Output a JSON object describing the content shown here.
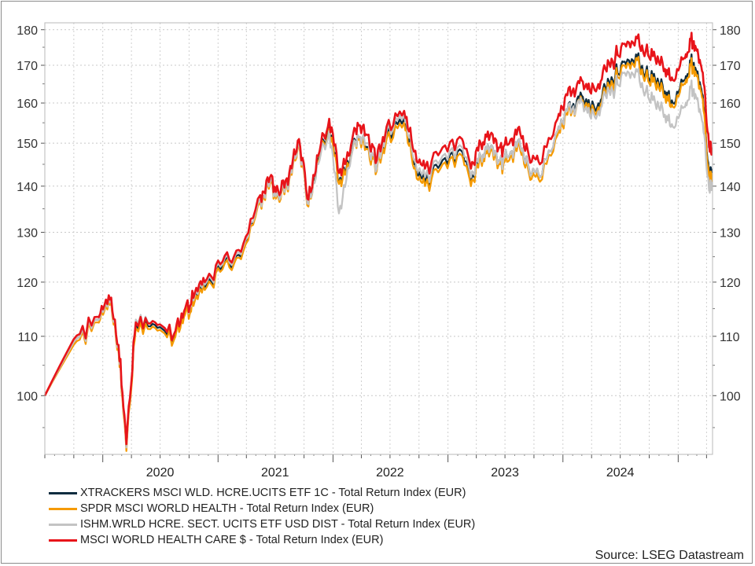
{
  "chart_data": {
    "type": "line",
    "title": "",
    "xlabel": "",
    "ylabel": "",
    "y_scale": "log",
    "ylim": [
      91,
      182
    ],
    "xlim": [
      "2019-07-01",
      "2025-04-20"
    ],
    "y_ticks": [
      100,
      110,
      120,
      130,
      140,
      150,
      160,
      170,
      180
    ],
    "x_tick_labels": [
      "2020",
      "2021",
      "2022",
      "2023",
      "2024"
    ],
    "grid": true,
    "legend_position": "bottom-left",
    "series": [
      {
        "name": "XTRACKERS MSCI WLD. HCRE.UCITS ETF 1C - Total Return Index (EUR)",
        "color": "#0d2c3f",
        "points": [
          [
            "2019-07-01",
            100
          ],
          [
            "2019-10-01",
            109
          ],
          [
            "2019-12-15",
            113
          ],
          [
            "2020-01-20",
            117
          ],
          [
            "2020-02-20",
            108
          ],
          [
            "2020-03-16",
            92
          ],
          [
            "2020-04-15",
            112
          ],
          [
            "2020-06-15",
            112
          ],
          [
            "2020-08-15",
            110
          ],
          [
            "2020-09-15",
            114
          ],
          [
            "2020-10-15",
            116
          ],
          [
            "2020-11-20",
            119
          ],
          [
            "2021-01-15",
            123
          ],
          [
            "2021-03-15",
            125
          ],
          [
            "2021-05-15",
            137
          ],
          [
            "2021-06-15",
            141
          ],
          [
            "2021-07-15",
            137
          ],
          [
            "2021-08-15",
            142
          ],
          [
            "2021-09-15",
            150
          ],
          [
            "2021-10-15",
            136
          ],
          [
            "2021-11-15",
            146
          ],
          [
            "2021-12-20",
            154
          ],
          [
            "2022-01-20",
            141
          ],
          [
            "2022-02-20",
            145
          ],
          [
            "2022-03-20",
            152
          ],
          [
            "2022-04-20",
            149
          ],
          [
            "2022-05-20",
            144
          ],
          [
            "2022-06-20",
            152
          ],
          [
            "2022-08-15",
            156
          ],
          [
            "2022-09-15",
            145
          ],
          [
            "2022-10-20",
            141
          ],
          [
            "2022-12-15",
            146
          ],
          [
            "2023-02-15",
            148
          ],
          [
            "2023-03-15",
            141
          ],
          [
            "2023-04-15",
            147
          ],
          [
            "2023-05-15",
            149
          ],
          [
            "2023-06-15",
            146
          ],
          [
            "2023-07-15",
            147
          ],
          [
            "2023-08-15",
            151
          ],
          [
            "2023-09-15",
            144
          ],
          [
            "2023-10-20",
            142
          ],
          [
            "2023-12-15",
            153
          ],
          [
            "2024-01-15",
            158
          ],
          [
            "2024-02-15",
            161
          ],
          [
            "2024-03-15",
            161
          ],
          [
            "2024-04-15",
            158
          ],
          [
            "2024-05-15",
            164
          ],
          [
            "2024-06-15",
            167
          ],
          [
            "2024-07-15",
            171
          ],
          [
            "2024-08-20",
            173
          ],
          [
            "2024-09-20",
            168
          ],
          [
            "2024-10-20",
            166
          ],
          [
            "2024-11-20",
            163
          ],
          [
            "2024-12-15",
            160
          ],
          [
            "2025-01-20",
            166
          ],
          [
            "2025-02-10",
            171
          ],
          [
            "2025-03-01",
            168
          ],
          [
            "2025-03-20",
            162
          ],
          [
            "2025-04-09",
            142
          ],
          [
            "2025-04-18",
            144
          ]
        ]
      },
      {
        "name": "SPDR MSCI WORLD HEALTH - Total Return Index (EUR)",
        "color": "#f59a00",
        "points": [
          [
            "2019-07-01",
            100
          ],
          [
            "2019-10-01",
            108.5
          ],
          [
            "2019-12-15",
            112.5
          ],
          [
            "2020-01-20",
            116.5
          ],
          [
            "2020-02-20",
            107.5
          ],
          [
            "2020-03-16",
            91.5
          ],
          [
            "2020-04-15",
            111.5
          ],
          [
            "2020-06-15",
            111.5
          ],
          [
            "2020-08-15",
            109.5
          ],
          [
            "2020-09-15",
            113.5
          ],
          [
            "2020-10-15",
            115.5
          ],
          [
            "2020-11-20",
            118.5
          ],
          [
            "2021-01-15",
            122.5
          ],
          [
            "2021-03-15",
            124.5
          ],
          [
            "2021-05-15",
            136.5
          ],
          [
            "2021-06-15",
            140.5
          ],
          [
            "2021-07-15",
            136.5
          ],
          [
            "2021-08-15",
            141.5
          ],
          [
            "2021-09-15",
            149.5
          ],
          [
            "2021-10-15",
            135.5
          ],
          [
            "2021-11-15",
            145.5
          ],
          [
            "2021-12-20",
            153.5
          ],
          [
            "2022-01-20",
            140.5
          ],
          [
            "2022-02-20",
            144.5
          ],
          [
            "2022-03-20",
            151.5
          ],
          [
            "2022-04-20",
            148.5
          ],
          [
            "2022-05-20",
            143.5
          ],
          [
            "2022-06-20",
            151
          ],
          [
            "2022-08-15",
            155
          ],
          [
            "2022-09-15",
            144
          ],
          [
            "2022-10-20",
            140
          ],
          [
            "2022-12-15",
            145
          ],
          [
            "2023-02-15",
            147
          ],
          [
            "2023-03-15",
            140
          ],
          [
            "2023-04-15",
            146
          ],
          [
            "2023-05-15",
            148
          ],
          [
            "2023-06-15",
            145
          ],
          [
            "2023-07-15",
            146
          ],
          [
            "2023-08-15",
            150
          ],
          [
            "2023-09-15",
            143
          ],
          [
            "2023-10-20",
            141
          ],
          [
            "2023-12-15",
            152
          ],
          [
            "2024-01-15",
            157
          ],
          [
            "2024-02-15",
            160
          ],
          [
            "2024-03-15",
            160
          ],
          [
            "2024-04-15",
            157
          ],
          [
            "2024-05-15",
            163
          ],
          [
            "2024-06-15",
            166
          ],
          [
            "2024-07-15",
            170
          ],
          [
            "2024-08-20",
            172
          ],
          [
            "2024-09-20",
            167
          ],
          [
            "2024-10-20",
            165
          ],
          [
            "2024-11-20",
            162
          ],
          [
            "2024-12-15",
            159
          ],
          [
            "2025-01-20",
            165
          ],
          [
            "2025-02-10",
            170
          ],
          [
            "2025-03-01",
            167
          ],
          [
            "2025-03-20",
            161
          ],
          [
            "2025-04-09",
            141
          ],
          [
            "2025-04-18",
            143
          ]
        ]
      },
      {
        "name": "ISHM.WRLD HCRE. SECT. UCITS ETF USD DIST - Total Return Index (EUR)",
        "color": "#c3c3c3",
        "points": [
          [
            "2019-07-01",
            100
          ],
          [
            "2019-10-01",
            109
          ],
          [
            "2019-12-15",
            113
          ],
          [
            "2020-01-20",
            117
          ],
          [
            "2020-02-20",
            108
          ],
          [
            "2020-03-16",
            92
          ],
          [
            "2020-04-15",
            113
          ],
          [
            "2020-06-15",
            112.5
          ],
          [
            "2020-08-15",
            110.5
          ],
          [
            "2020-09-15",
            114.5
          ],
          [
            "2020-10-15",
            116.5
          ],
          [
            "2020-11-20",
            119.5
          ],
          [
            "2021-01-15",
            123.5
          ],
          [
            "2021-03-15",
            125.5
          ],
          [
            "2021-05-15",
            137
          ],
          [
            "2021-06-15",
            141
          ],
          [
            "2021-07-15",
            137
          ],
          [
            "2021-08-15",
            142
          ],
          [
            "2021-09-15",
            150
          ],
          [
            "2021-10-15",
            136
          ],
          [
            "2021-11-15",
            145
          ],
          [
            "2021-12-20",
            153
          ],
          [
            "2022-01-20",
            134
          ],
          [
            "2022-02-20",
            144
          ],
          [
            "2022-03-20",
            152
          ],
          [
            "2022-04-20",
            150
          ],
          [
            "2022-05-20",
            144
          ],
          [
            "2022-06-20",
            153
          ],
          [
            "2022-08-15",
            157
          ],
          [
            "2022-09-15",
            146
          ],
          [
            "2022-10-20",
            142
          ],
          [
            "2022-12-15",
            147
          ],
          [
            "2023-02-15",
            149
          ],
          [
            "2023-03-15",
            142
          ],
          [
            "2023-04-15",
            147
          ],
          [
            "2023-05-15",
            149
          ],
          [
            "2023-06-15",
            146
          ],
          [
            "2023-07-15",
            147
          ],
          [
            "2023-08-15",
            151
          ],
          [
            "2023-09-15",
            144
          ],
          [
            "2023-10-20",
            142
          ],
          [
            "2023-12-15",
            153
          ],
          [
            "2024-01-15",
            158
          ],
          [
            "2024-02-15",
            160
          ],
          [
            "2024-03-15",
            159
          ],
          [
            "2024-04-15",
            156
          ],
          [
            "2024-05-15",
            162
          ],
          [
            "2024-06-15",
            164
          ],
          [
            "2024-07-15",
            168
          ],
          [
            "2024-08-20",
            169
          ],
          [
            "2024-09-20",
            163
          ],
          [
            "2024-10-20",
            160
          ],
          [
            "2024-11-20",
            157
          ],
          [
            "2024-12-15",
            154
          ],
          [
            "2025-01-20",
            159
          ],
          [
            "2025-02-10",
            164
          ],
          [
            "2025-03-01",
            161
          ],
          [
            "2025-03-20",
            155
          ],
          [
            "2025-04-09",
            139
          ],
          [
            "2025-04-18",
            141
          ]
        ]
      },
      {
        "name": "MSCI WORLD HEALTH CARE $ - Total Return Index (EUR)",
        "color": "#e8141a",
        "points": [
          [
            "2019-07-01",
            100
          ],
          [
            "2019-10-01",
            109.5
          ],
          [
            "2019-12-15",
            113.5
          ],
          [
            "2020-01-20",
            117.5
          ],
          [
            "2020-02-20",
            108.5
          ],
          [
            "2020-03-16",
            92.5
          ],
          [
            "2020-04-15",
            112.5
          ],
          [
            "2020-06-15",
            112.5
          ],
          [
            "2020-08-15",
            110.5
          ],
          [
            "2020-09-15",
            114.5
          ],
          [
            "2020-10-15",
            117
          ],
          [
            "2020-11-20",
            120
          ],
          [
            "2021-01-15",
            124
          ],
          [
            "2021-03-15",
            126
          ],
          [
            "2021-05-15",
            138
          ],
          [
            "2021-06-15",
            142
          ],
          [
            "2021-07-15",
            138
          ],
          [
            "2021-08-15",
            143
          ],
          [
            "2021-09-15",
            151
          ],
          [
            "2021-10-15",
            137
          ],
          [
            "2021-11-15",
            147
          ],
          [
            "2021-12-20",
            156
          ],
          [
            "2022-01-20",
            143
          ],
          [
            "2022-02-20",
            147
          ],
          [
            "2022-03-20",
            155
          ],
          [
            "2022-04-20",
            152
          ],
          [
            "2022-05-20",
            146
          ],
          [
            "2022-06-20",
            154
          ],
          [
            "2022-08-15",
            158
          ],
          [
            "2022-09-15",
            148
          ],
          [
            "2022-10-20",
            144
          ],
          [
            "2022-12-15",
            149
          ],
          [
            "2023-02-15",
            151
          ],
          [
            "2023-03-15",
            144
          ],
          [
            "2023-04-15",
            150
          ],
          [
            "2023-05-15",
            152
          ],
          [
            "2023-06-15",
            149
          ],
          [
            "2023-07-15",
            150
          ],
          [
            "2023-08-15",
            154
          ],
          [
            "2023-09-15",
            147
          ],
          [
            "2023-10-20",
            145
          ],
          [
            "2023-12-15",
            156
          ],
          [
            "2024-01-15",
            162
          ],
          [
            "2024-02-15",
            165
          ],
          [
            "2024-03-15",
            165
          ],
          [
            "2024-04-15",
            163
          ],
          [
            "2024-05-15",
            169
          ],
          [
            "2024-06-15",
            172
          ],
          [
            "2024-07-15",
            176
          ],
          [
            "2024-08-20",
            178
          ],
          [
            "2024-09-20",
            174
          ],
          [
            "2024-10-20",
            172
          ],
          [
            "2024-11-20",
            169
          ],
          [
            "2024-12-15",
            166
          ],
          [
            "2025-01-20",
            172
          ],
          [
            "2025-02-10",
            177
          ],
          [
            "2025-03-01",
            174
          ],
          [
            "2025-03-20",
            168
          ],
          [
            "2025-04-09",
            149
          ],
          [
            "2025-04-18",
            149
          ]
        ]
      }
    ],
    "source": "Source: LSEG Datastream"
  }
}
